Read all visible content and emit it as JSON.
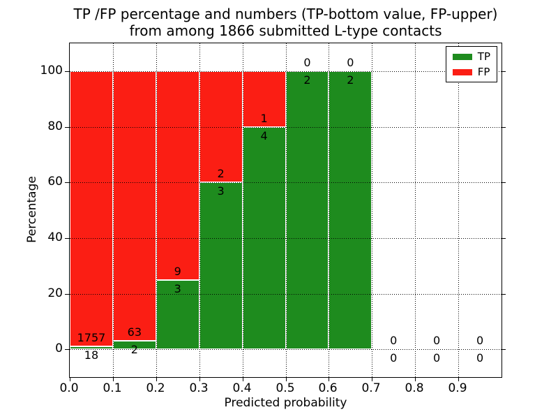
{
  "chart_data": {
    "type": "bar",
    "stacked": true,
    "title_line1": "TP /FP percentage and numbers (TP-bottom value, FP-upper)",
    "title_line2": "from among 1866 submitted L-type contacts",
    "total_contacts": 1866,
    "xlabel": "Predicted probability",
    "ylabel": "Percentage",
    "xlim": [
      0.0,
      1.0
    ],
    "ylim": [
      -10,
      110
    ],
    "grid_style": "dotted",
    "bar_edge_color": "#ffffff",
    "xticks": [
      {
        "value": 0.0,
        "label": "0.0"
      },
      {
        "value": 0.1,
        "label": "0.1"
      },
      {
        "value": 0.2,
        "label": "0.2"
      },
      {
        "value": 0.3,
        "label": "0.3"
      },
      {
        "value": 0.4,
        "label": "0.4"
      },
      {
        "value": 0.5,
        "label": "0.5"
      },
      {
        "value": 0.6,
        "label": "0.6"
      },
      {
        "value": 0.7,
        "label": "0.7"
      },
      {
        "value": 0.8,
        "label": "0.8"
      },
      {
        "value": 0.9,
        "label": "0.9"
      }
    ],
    "yticks": [
      {
        "value": 0,
        "label": "0"
      },
      {
        "value": 20,
        "label": "20"
      },
      {
        "value": 40,
        "label": "40"
      },
      {
        "value": 60,
        "label": "60"
      },
      {
        "value": 80,
        "label": "80"
      },
      {
        "value": 100,
        "label": "100"
      }
    ],
    "legend": {
      "position": "upper right",
      "entries": [
        {
          "label": "TP",
          "color": "#1e8b1e"
        },
        {
          "label": "FP",
          "color": "#fb1e14"
        }
      ]
    },
    "bins": [
      {
        "x0": 0.0,
        "x1": 0.1,
        "tp": 18,
        "fp": 1757,
        "tp_pct": 1.01
      },
      {
        "x0": 0.1,
        "x1": 0.2,
        "tp": 2,
        "fp": 63,
        "tp_pct": 3.08
      },
      {
        "x0": 0.2,
        "x1": 0.3,
        "tp": 3,
        "fp": 9,
        "tp_pct": 25
      },
      {
        "x0": 0.3,
        "x1": 0.4,
        "tp": 3,
        "fp": 2,
        "tp_pct": 60
      },
      {
        "x0": 0.4,
        "x1": 0.5,
        "tp": 4,
        "fp": 1,
        "tp_pct": 80
      },
      {
        "x0": 0.5,
        "x1": 0.6,
        "tp": 2,
        "fp": 0,
        "tp_pct": 100
      },
      {
        "x0": 0.6,
        "x1": 0.7,
        "tp": 2,
        "fp": 0,
        "tp_pct": 100
      },
      {
        "x0": 0.7,
        "x1": 0.8,
        "tp": 0,
        "fp": 0,
        "tp_pct": null
      },
      {
        "x0": 0.8,
        "x1": 0.9,
        "tp": 0,
        "fp": 0,
        "tp_pct": null
      },
      {
        "x0": 0.9,
        "x1": 1.0,
        "tp": 0,
        "fp": 0,
        "tp_pct": null
      }
    ]
  }
}
